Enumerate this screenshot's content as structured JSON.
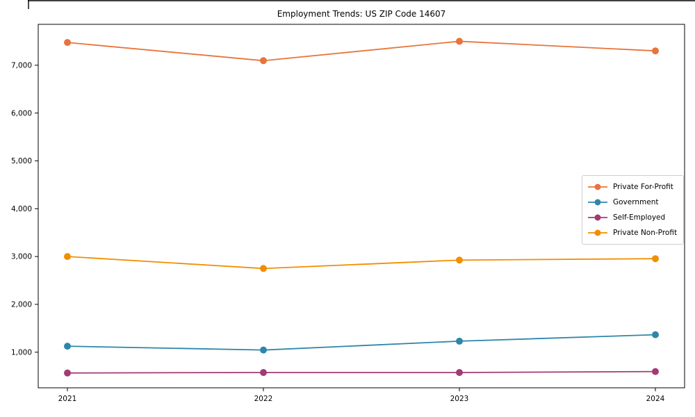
{
  "chart_data": {
    "type": "line",
    "title": "Employment Trends: US ZIP Code 14607",
    "xlabel": "",
    "ylabel": "",
    "categories": [
      "2021",
      "2022",
      "2023",
      "2024"
    ],
    "series": [
      {
        "name": "Private For-Profit",
        "color": "#E8743B",
        "values": [
          7475,
          7095,
          7500,
          7300
        ]
      },
      {
        "name": "Government",
        "color": "#2E86AB",
        "values": [
          1125,
          1045,
          1230,
          1365
        ]
      },
      {
        "name": "Self-Employed",
        "color": "#A23B72",
        "values": [
          565,
          575,
          575,
          595
        ]
      },
      {
        "name": "Private Non-Profit",
        "color": "#F18F01",
        "values": [
          3000,
          2750,
          2925,
          2955
        ]
      }
    ],
    "ylim": [
      255,
      7855
    ],
    "yticks": [
      1000,
      2000,
      3000,
      4000,
      5000,
      6000,
      7000
    ],
    "ytick_labels": [
      "1,000",
      "2,000",
      "3,000",
      "4,000",
      "5,000",
      "6,000",
      "7,000"
    ],
    "grid": false,
    "legend_position": "center right",
    "marker": "circle",
    "axis_color": "#000000",
    "legend_border_color": "#cccccc"
  }
}
